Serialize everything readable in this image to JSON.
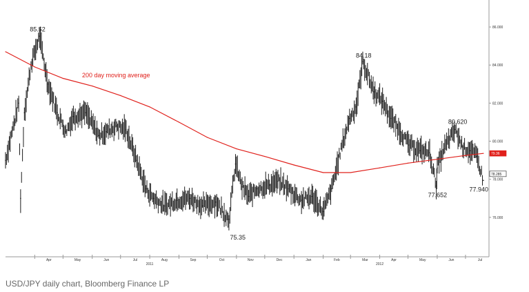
{
  "caption": "USD/JPY daily chart, Bloomberg Finance LP",
  "colors": {
    "price": "#1a1a1a",
    "ma": "#e0201b",
    "last_tag": "#1a1a1a",
    "ma_tag": "#e0201b",
    "axis": "#999999"
  },
  "chart_data": {
    "type": "line",
    "title": "",
    "xlabel": "",
    "ylabel": "",
    "ylim": [
      74.0,
      87.2
    ],
    "y_ticks": [
      "86.000",
      "84.000",
      "82.000",
      "80.000",
      "78.000",
      "76.000"
    ],
    "x_tick_labels": [
      "Apr",
      "May",
      "Jun",
      "Jul",
      "Aug",
      "Sep",
      "Oct",
      "Nov",
      "Dec",
      "Jan",
      "Feb",
      "Mar",
      "Apr",
      "May",
      "Jun",
      "Jul"
    ],
    "year_labels": [
      "2011",
      "2012"
    ],
    "grid": false,
    "series": [
      {
        "name": "USD/JPY",
        "style": "daily-bars",
        "x": [
          "2011-03-01",
          "2011-03-15",
          "2011-03-17",
          "2011-03-21",
          "2011-03-28",
          "2011-04-06",
          "2011-04-15",
          "2011-04-25",
          "2011-05-04",
          "2011-05-12",
          "2011-05-25",
          "2011-06-08",
          "2011-06-16",
          "2011-06-27",
          "2011-07-07",
          "2011-07-18",
          "2011-07-28",
          "2011-08-05",
          "2011-08-17",
          "2011-08-30",
          "2011-09-13",
          "2011-09-26",
          "2011-10-10",
          "2011-10-24",
          "2011-10-31",
          "2011-11-07",
          "2011-11-14",
          "2011-11-23",
          "2011-12-06",
          "2011-12-15",
          "2011-12-26",
          "2012-01-09",
          "2012-01-20",
          "2012-02-01",
          "2012-02-10",
          "2012-02-20",
          "2012-02-29",
          "2012-03-07",
          "2012-03-14",
          "2012-03-26",
          "2012-04-04",
          "2012-04-13",
          "2012-04-23",
          "2012-05-02",
          "2012-05-14",
          "2012-05-24",
          "2012-05-31",
          "2012-06-01",
          "2012-06-08",
          "2012-06-20",
          "2012-06-28",
          "2012-07-06",
          "2012-07-13",
          "2012-07-20"
        ],
        "values": [
          79.0,
          82.0,
          77.0,
          81.5,
          84.0,
          85.52,
          83.0,
          81.5,
          80.5,
          81.3,
          81.5,
          80.3,
          80.5,
          80.8,
          80.6,
          79.0,
          77.5,
          77.0,
          76.6,
          76.9,
          77.0,
          76.6,
          76.8,
          75.9,
          78.8,
          77.6,
          77.1,
          77.5,
          77.7,
          77.9,
          77.5,
          76.9,
          77.1,
          76.3,
          77.5,
          79.6,
          81.2,
          81.8,
          84.18,
          82.6,
          82.1,
          81.2,
          80.5,
          79.8,
          79.5,
          79.4,
          77.652,
          78.6,
          79.6,
          80.62,
          79.7,
          79.5,
          79.2,
          77.94
        ]
      },
      {
        "name": "200 day moving average",
        "style": "line",
        "x": [
          "2011-03-01",
          "2011-04-01",
          "2011-05-01",
          "2011-06-01",
          "2011-07-01",
          "2011-08-01",
          "2011-09-01",
          "2011-10-01",
          "2011-11-01",
          "2011-12-01",
          "2012-01-01",
          "2012-02-01",
          "2012-03-01",
          "2012-04-01",
          "2012-05-01",
          "2012-06-01",
          "2012-07-01",
          "2012-07-20"
        ],
        "values": [
          84.7,
          83.9,
          83.3,
          82.9,
          82.4,
          81.8,
          81.0,
          80.2,
          79.6,
          79.2,
          78.75,
          78.35,
          78.35,
          78.6,
          78.85,
          79.05,
          79.25,
          79.36
        ]
      }
    ],
    "annotations": [
      {
        "text": "85.52",
        "x": "2011-04-06",
        "y": 85.52
      },
      {
        "text": "75.35",
        "x": "2011-10-31",
        "y": 75.35
      },
      {
        "text": "84.18",
        "x": "2012-03-14",
        "y": 84.18
      },
      {
        "text": "80.620",
        "x": "2012-06-20",
        "y": 80.62
      },
      {
        "text": "77.652",
        "x": "2012-05-31",
        "y": 77.652
      },
      {
        "text": "77.940",
        "x": "2012-07-20",
        "y": 77.94
      },
      {
        "text": "200 day moving average",
        "x": "2011-06-01",
        "y": 83.4
      }
    ],
    "value_tags": [
      {
        "text": "79.36",
        "value": 79.36,
        "color": "#e0201b"
      },
      {
        "text": "78.285",
        "value": 78.285,
        "color": "#1a1a1a"
      }
    ]
  }
}
